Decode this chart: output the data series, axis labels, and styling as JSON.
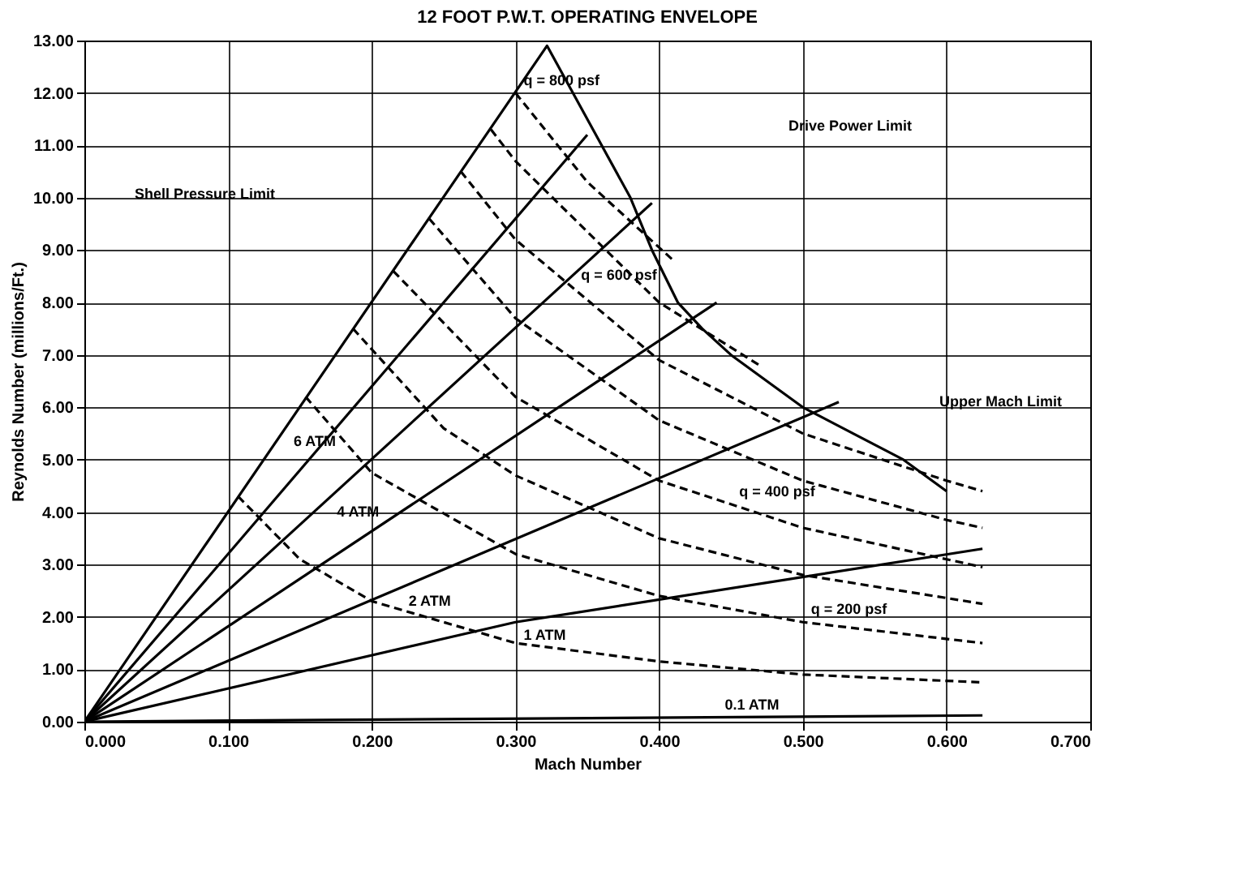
{
  "chart_data": {
    "type": "line",
    "title": "12 FOOT P.W.T. OPERATING ENVELOPE",
    "xlabel": "Mach Number",
    "ylabel": "Reynolds Number (millions/Ft.)",
    "xlim": [
      0,
      0.7
    ],
    "ylim": [
      0,
      13
    ],
    "xticks": [
      {
        "value": 0,
        "label": "0.000"
      },
      {
        "value": 0.1,
        "label": "0.100"
      },
      {
        "value": 0.2,
        "label": "0.200"
      },
      {
        "value": 0.3,
        "label": "0.300"
      },
      {
        "value": 0.4,
        "label": "0.400"
      },
      {
        "value": 0.5,
        "label": "0.500"
      },
      {
        "value": 0.6,
        "label": "0.600"
      },
      {
        "value": 0.7,
        "label": "0.700"
      }
    ],
    "yticks": [
      {
        "value": 0,
        "label": "0.00"
      },
      {
        "value": 1,
        "label": "1.00"
      },
      {
        "value": 2,
        "label": "2.00"
      },
      {
        "value": 3,
        "label": "3.00"
      },
      {
        "value": 4,
        "label": "4.00"
      },
      {
        "value": 5,
        "label": "5.00"
      },
      {
        "value": 6,
        "label": "6.00"
      },
      {
        "value": 7,
        "label": "7.00"
      },
      {
        "value": 8,
        "label": "8.00"
      },
      {
        "value": 9,
        "label": "9.00"
      },
      {
        "value": 10,
        "label": "10.00"
      },
      {
        "value": 11,
        "label": "11.00"
      },
      {
        "value": 12,
        "label": "12.00"
      },
      {
        "value": 13,
        "label": "13.00"
      }
    ],
    "grid": true,
    "marker": "none",
    "series": [
      {
        "color": "#000000",
        "line_style": "solid",
        "x": [
          0,
          0.322,
          0.36,
          0.38,
          0.395,
          0.413,
          0.43,
          0.45,
          0.48,
          0.5,
          0.535,
          0.57,
          0.6
        ],
        "values": [
          0,
          12.9,
          11,
          10,
          9,
          8,
          7.5,
          7.0,
          6.4,
          6.0,
          5.5,
          5.0,
          4.4
        ]
      },
      {
        "color": "#000000",
        "line_style": "solid",
        "x": [
          0,
          0.35
        ],
        "values": [
          0,
          11.2
        ]
      },
      {
        "color": "#000000",
        "line_style": "solid",
        "x": [
          0,
          0.395
        ],
        "values": [
          0,
          9.9
        ]
      },
      {
        "color": "#000000",
        "line_style": "solid",
        "x": [
          0,
          0.44
        ],
        "values": [
          0,
          8.0
        ]
      },
      {
        "color": "#000000",
        "line_style": "solid",
        "x": [
          0,
          0.525
        ],
        "values": [
          0,
          6.1
        ]
      },
      {
        "color": "#000000",
        "line_style": "solid",
        "x": [
          0,
          0.3,
          0.625
        ],
        "values": [
          0,
          1.9,
          3.3
        ]
      },
      {
        "color": "#000000",
        "line_style": "solid",
        "x": [
          0,
          0.625
        ],
        "values": [
          0,
          0.12
        ]
      },
      {
        "color": "#000000",
        "line_style": "dashed",
        "x": [
          0.107,
          0.15,
          0.2,
          0.3,
          0.4,
          0.5,
          0.625
        ],
        "values": [
          4.3,
          3.1,
          2.3,
          1.5,
          1.15,
          0.9,
          0.75
        ]
      },
      {
        "color": "#000000",
        "line_style": "dashed",
        "x": [
          0.154,
          0.2,
          0.3,
          0.4,
          0.5,
          0.625
        ],
        "values": [
          6.2,
          4.75,
          3.2,
          2.4,
          1.9,
          1.5
        ]
      },
      {
        "color": "#000000",
        "line_style": "dashed",
        "x": [
          0.187,
          0.25,
          0.3,
          0.4,
          0.5,
          0.625
        ],
        "values": [
          7.5,
          5.6,
          4.7,
          3.5,
          2.8,
          2.25
        ]
      },
      {
        "color": "#000000",
        "line_style": "dashed",
        "x": [
          0.215,
          0.3,
          0.4,
          0.5,
          0.625
        ],
        "values": [
          8.6,
          6.2,
          4.6,
          3.7,
          2.95
        ]
      },
      {
        "color": "#000000",
        "line_style": "dashed",
        "x": [
          0.24,
          0.3,
          0.4,
          0.5,
          0.6,
          0.625
        ],
        "values": [
          9.6,
          7.7,
          5.75,
          4.6,
          3.85,
          3.7
        ]
      },
      {
        "color": "#000000",
        "line_style": "dashed",
        "x": [
          0.262,
          0.3,
          0.4,
          0.5,
          0.6,
          0.625
        ],
        "values": [
          10.5,
          9.2,
          6.9,
          5.5,
          4.6,
          4.4
        ]
      },
      {
        "color": "#000000",
        "line_style": "dashed",
        "x": [
          0.283,
          0.3,
          0.4,
          0.47
        ],
        "values": [
          11.3,
          10.7,
          8.0,
          6.8
        ]
      },
      {
        "color": "#000000",
        "line_style": "dashed",
        "x": [
          0.3,
          0.35,
          0.41
        ],
        "values": [
          12.0,
          10.3,
          8.8
        ]
      }
    ],
    "annotations": [
      "Shell Pressure Limit",
      "Drive Power Limit",
      "Upper Mach Limit",
      {
        "text": "q = 800 psf",
        "x": 0.3,
        "y": 12.0
      },
      {
        "text": "q = 600 psf",
        "x": 0.34,
        "y": 8.28
      },
      {
        "text": "q = 400 psf",
        "x": 0.45,
        "y": 4.15
      },
      {
        "text": "q = 200 psf",
        "x": 0.5,
        "y": 1.9
      },
      {
        "text": "6 ATM",
        "x": 0.14,
        "y": 5.6
      },
      {
        "text": "4 ATM",
        "x": 0.17,
        "y": 4.26
      },
      {
        "text": "2 ATM",
        "x": 0.22,
        "y": 2.56
      },
      {
        "text": "1 ATM",
        "x": 0.3,
        "y": 1.9
      },
      {
        "text": "0.1 ATM",
        "x": 0.44,
        "y": 0.085
      }
    ]
  }
}
